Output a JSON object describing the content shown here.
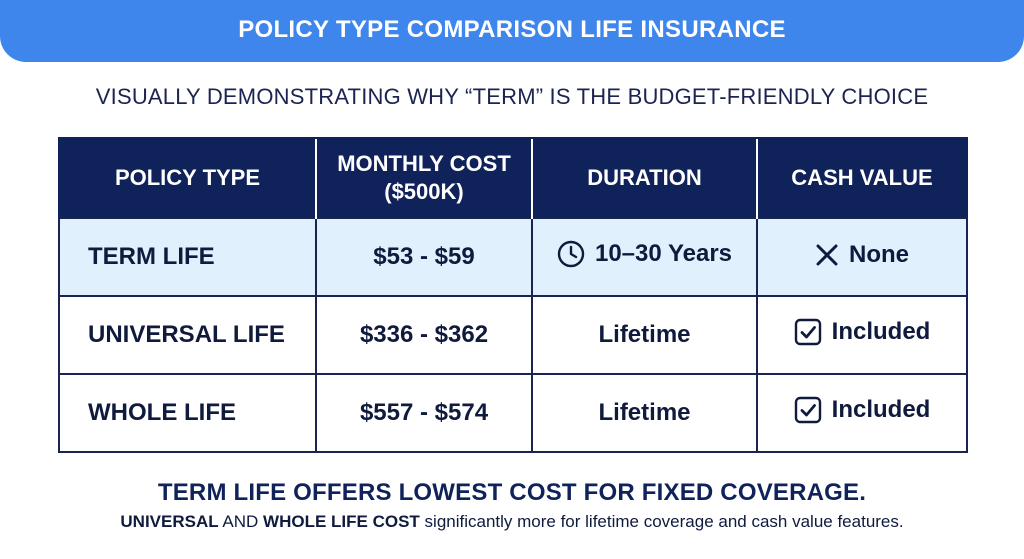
{
  "banner": {
    "title": "POLICY TYPE COMPARISON LIFE INSURANCE"
  },
  "subtitle": "VISUALLY DEMONSTRATING WHY “TERM” IS THE BUDGET-FRIENDLY CHOICE",
  "table": {
    "headers": {
      "policy_type": "POLICY TYPE",
      "monthly_cost_line1": "MONTHLY COST",
      "monthly_cost_line2": "($500K)",
      "duration": "DURATION",
      "cash_value": "CASH VALUE"
    },
    "rows": [
      {
        "policy": "TERM LIFE",
        "cost": "$53 - $59",
        "duration": "10–30 Years",
        "duration_icon": "clock-icon",
        "cash_value": "None",
        "cash_value_icon": "x-mark-icon",
        "highlighted": true
      },
      {
        "policy": "UNIVERSAL LIFE",
        "cost": "$336 - $362",
        "duration": "Lifetime",
        "cash_value": "Included",
        "cash_value_icon": "checkbox-checked-icon",
        "highlighted": false
      },
      {
        "policy": "WHOLE LIFE",
        "cost": "$557 - $574",
        "duration": "Lifetime",
        "cash_value": "Included",
        "cash_value_icon": "checkbox-checked-icon",
        "highlighted": false
      }
    ]
  },
  "footer": {
    "headline": "TERM LIFE OFFERS LOWEST COST FOR FIXED COVERAGE.",
    "note_bold_1": "UNIVERSAL",
    "note_text_1": " AND ",
    "note_bold_2": "WHOLE LIFE COST",
    "note_text_2": " significantly more for lifetime coverage and cash value features."
  },
  "colors": {
    "banner": "#3f86ec",
    "header_bg": "#10225a",
    "highlight_row": "#e1f0fd",
    "text": "#0f1a3c"
  }
}
